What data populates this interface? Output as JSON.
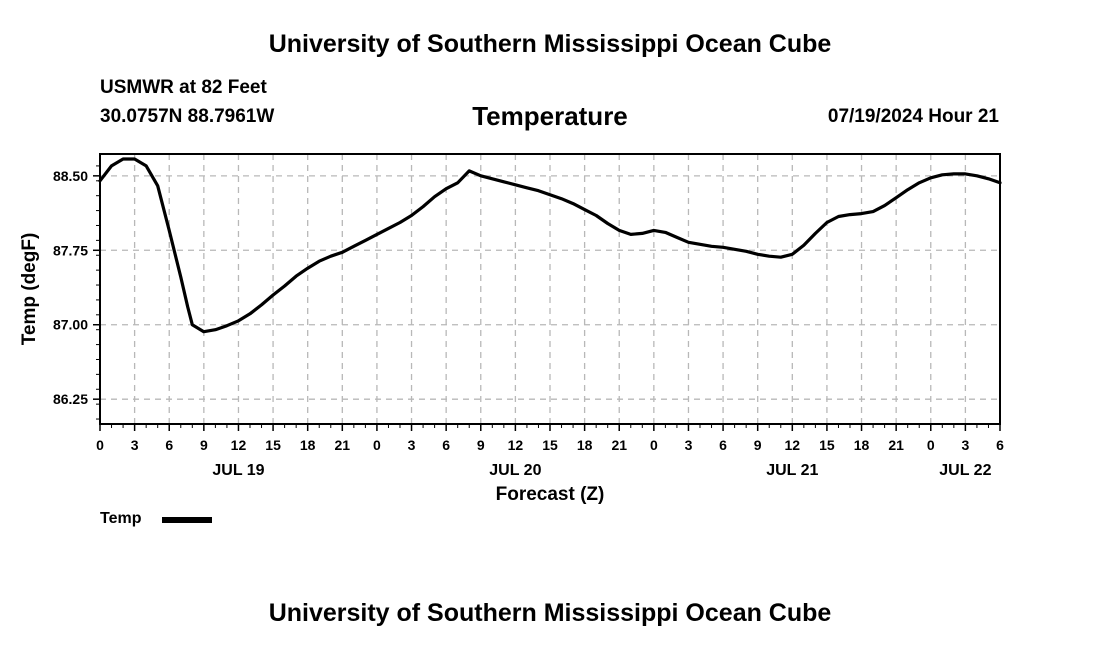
{
  "header": {
    "title": "University of Southern Mississippi Ocean Cube",
    "station_line": "USMWR at 82 Feet",
    "coords_line": "30.0757N  88.7961W",
    "variable": "Temperature",
    "datetime": "07/19/2024 Hour 21"
  },
  "footer": {
    "title": "University of Southern Mississippi Ocean Cube"
  },
  "legend": {
    "label": "Temp",
    "color": "#000000"
  },
  "chart_data": {
    "type": "line",
    "title": "Temperature",
    "xlabel": "Forecast (Z)",
    "ylabel": "Temp (degF)",
    "x_unit": "hours since JUL 19 00Z",
    "xlim": [
      0,
      78
    ],
    "ylim": [
      86.0,
      88.72
    ],
    "grid": true,
    "x_ticks": [
      0,
      3,
      6,
      9,
      12,
      15,
      18,
      21,
      24,
      27,
      30,
      33,
      36,
      39,
      42,
      45,
      48,
      51,
      54,
      57,
      60,
      63,
      66,
      69,
      72,
      75,
      78
    ],
    "x_tick_labels": [
      "0",
      "3",
      "6",
      "9",
      "12",
      "15",
      "18",
      "21",
      "0",
      "3",
      "6",
      "9",
      "12",
      "15",
      "18",
      "21",
      "0",
      "3",
      "6",
      "9",
      "12",
      "15",
      "18",
      "21",
      "0",
      "3",
      "6"
    ],
    "date_labels": [
      {
        "x": 12,
        "label": "JUL 19"
      },
      {
        "x": 36,
        "label": "JUL 20"
      },
      {
        "x": 60,
        "label": "JUL 21"
      },
      {
        "x": 75,
        "label": "JUL 22"
      }
    ],
    "y_ticks": [
      86.25,
      87.0,
      87.75,
      88.5
    ],
    "y_tick_labels": [
      "86.25",
      "87.00",
      "87.75",
      "88.50"
    ],
    "series": [
      {
        "name": "Temp",
        "x": [
          0,
          1,
          2,
          3,
          4,
          5,
          6,
          7,
          7.6,
          8,
          9,
          10,
          11,
          12,
          13,
          14,
          15,
          16,
          17,
          18,
          19,
          20,
          21,
          22,
          23,
          24,
          25,
          26,
          27,
          28,
          29,
          30,
          31,
          32,
          33,
          34,
          35,
          36,
          37,
          38,
          39,
          40,
          41,
          42,
          43,
          44,
          45,
          46,
          47,
          48,
          49,
          50,
          51,
          52,
          53,
          54,
          55,
          56,
          57,
          58,
          59,
          60,
          61,
          62,
          63,
          64,
          65,
          66,
          67,
          68,
          69,
          70,
          71,
          72,
          73,
          74,
          75,
          76,
          77,
          78
        ],
        "values": [
          88.45,
          88.6,
          88.67,
          88.67,
          88.6,
          88.4,
          87.95,
          87.48,
          87.18,
          87.0,
          86.93,
          86.95,
          86.99,
          87.04,
          87.11,
          87.2,
          87.3,
          87.39,
          87.49,
          87.57,
          87.64,
          87.69,
          87.73,
          87.79,
          87.85,
          87.91,
          87.97,
          88.03,
          88.1,
          88.19,
          88.29,
          88.37,
          88.43,
          88.55,
          88.5,
          88.47,
          88.44,
          88.41,
          88.38,
          88.35,
          88.31,
          88.27,
          88.22,
          88.16,
          88.1,
          88.02,
          87.95,
          87.91,
          87.92,
          87.95,
          87.93,
          87.88,
          87.83,
          87.81,
          87.79,
          87.78,
          87.76,
          87.74,
          87.71,
          87.69,
          87.68,
          87.71,
          87.8,
          87.92,
          88.03,
          88.09,
          88.11,
          88.12,
          88.14,
          88.2,
          88.28,
          88.36,
          88.43,
          88.48,
          88.51,
          88.52,
          88.52,
          88.5,
          88.47,
          88.43
        ]
      }
    ]
  }
}
